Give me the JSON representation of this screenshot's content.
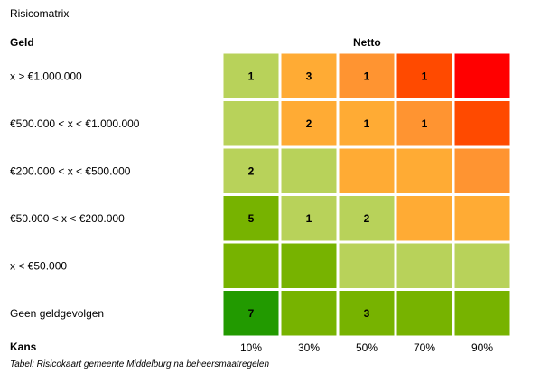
{
  "title": "Risicomatrix",
  "caption": "Tabel: Risicokaart gemeente Middelburg na beheersmaatregelen",
  "chart_data": {
    "type": "heatmap",
    "title": "Netto",
    "ylabel": "Geld",
    "xlabel": "Kans",
    "x_categories": [
      "10%",
      "30%",
      "50%",
      "70%",
      "90%"
    ],
    "y_categories": [
      "x > €1.000.000",
      "€500.000 < x < €1.000.000",
      "€200.000 < x < €500.000",
      "€50.000 < x < €200.000",
      "x < €50.000",
      "Geen geldgevolgen"
    ],
    "values": [
      [
        "1",
        "3",
        "1",
        "1",
        ""
      ],
      [
        "",
        "2",
        "1",
        "1",
        ""
      ],
      [
        "2",
        "",
        "",
        "",
        ""
      ],
      [
        "5",
        "1",
        "2",
        "",
        ""
      ],
      [
        "",
        "",
        "",
        "",
        ""
      ],
      [
        "7",
        "",
        "3",
        "",
        ""
      ]
    ],
    "colors": [
      [
        "#b8d25a",
        "#ffab34",
        "#ff9431",
        "#ff4a00",
        "#ff0000"
      ],
      [
        "#b8d25a",
        "#ffab34",
        "#ffab34",
        "#ff9431",
        "#ff4a00"
      ],
      [
        "#b8d25a",
        "#b8d25a",
        "#ffab34",
        "#ffab34",
        "#ff9431"
      ],
      [
        "#77b300",
        "#b8d25a",
        "#b8d25a",
        "#ffab34",
        "#ffab34"
      ],
      [
        "#77b300",
        "#77b300",
        "#b8d25a",
        "#b8d25a",
        "#b8d25a"
      ],
      [
        "#229a00",
        "#77b300",
        "#77b300",
        "#77b300",
        "#77b300"
      ]
    ]
  }
}
